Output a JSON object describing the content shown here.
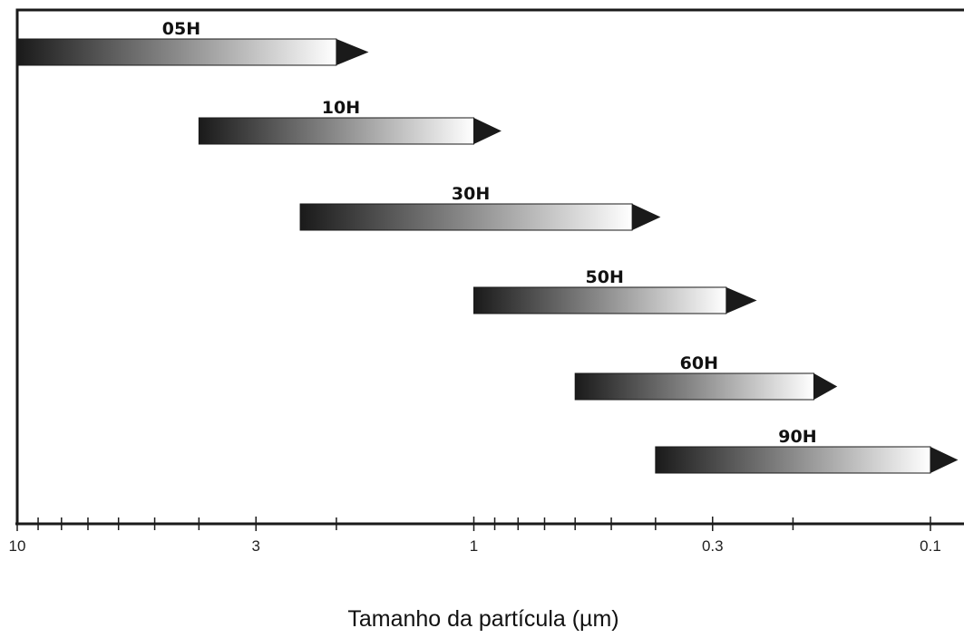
{
  "chart_data": {
    "type": "bar",
    "orientation": "horizontal-range",
    "xlabel": "Tamanho da partícula (µm)",
    "x_scale": "log",
    "x_reversed": true,
    "xlim": [
      10,
      0.1
    ],
    "tick_labels": [
      "10",
      "3",
      "1",
      "0.3",
      "0.1"
    ],
    "tick_values": [
      10,
      3,
      1,
      0.3,
      0.1
    ],
    "minor_ticks": [
      9,
      8,
      7,
      6,
      5,
      4,
      2,
      0.9,
      0.8,
      0.7,
      0.6,
      0.5,
      0.4,
      0.2
    ],
    "series": [
      {
        "name": "05H",
        "start": 10,
        "end": 2.0,
        "arrow_tip": 1.7
      },
      {
        "name": "10H",
        "start": 4.0,
        "end": 1.0,
        "arrow_tip": 0.87
      },
      {
        "name": "30H",
        "start": 2.4,
        "end": 0.45,
        "arrow_tip": 0.39
      },
      {
        "name": "50H",
        "start": 1.0,
        "end": 0.28,
        "arrow_tip": 0.24
      },
      {
        "name": "60H",
        "start": 0.6,
        "end": 0.18,
        "arrow_tip": 0.16
      },
      {
        "name": "90H",
        "start": 0.4,
        "end": 0.1,
        "arrow_tip": 0.087
      }
    ],
    "colors": {
      "gradient_start": "#1a1a1a",
      "gradient_mid": "#8a8a8a",
      "gradient_end": "#ffffff",
      "arrow": "#1a1a1a",
      "axis": "#1a1a1a"
    },
    "grid": false,
    "legend": "none"
  }
}
